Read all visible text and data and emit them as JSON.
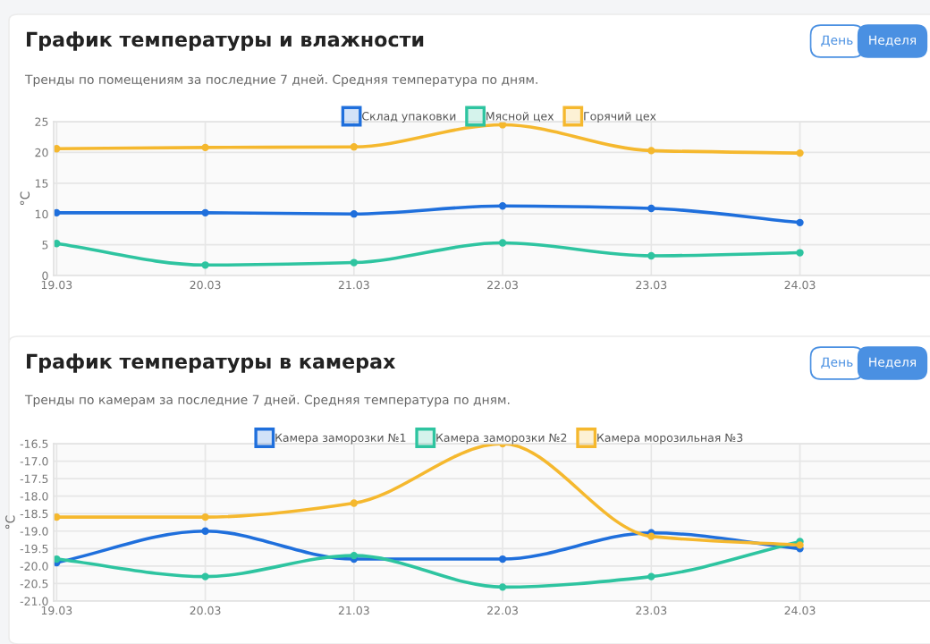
{
  "chart_data": [
    {
      "type": "line",
      "title": "График температуры и влажности",
      "subtitle": "Тренды по помещениям за последние 7 дней. Средняя температура по дням.",
      "ylabel": "°C",
      "annotations": [
        "День",
        "Неделя"
      ],
      "categories": [
        "19.03",
        "20.03",
        "21.03",
        "22.03",
        "23.03",
        "24.03"
      ],
      "series": [
        {
          "name": "Склад упаковки",
          "color": "#1f6fdc",
          "values": [
            10.2,
            10.2,
            10.0,
            11.3,
            10.9,
            8.6
          ]
        },
        {
          "name": "Мясной цех",
          "color": "#2ec4a0",
          "values": [
            5.2,
            1.7,
            2.1,
            5.3,
            3.2,
            3.7
          ]
        },
        {
          "name": "Горячий цех",
          "color": "#f5b82e",
          "values": [
            20.6,
            20.8,
            20.9,
            24.5,
            20.3,
            19.9
          ]
        }
      ],
      "ylim": [
        0,
        25
      ],
      "yticks": [
        0,
        5,
        10,
        15,
        20,
        25
      ],
      "grid": true,
      "legend": "top",
      "marker": "circle",
      "line_style": "solid"
    },
    {
      "type": "line",
      "title": "График температуры в камерах",
      "subtitle": "Тренды по камерам за последние 7 дней. Средняя температура по дням.",
      "ylabel": "°C",
      "annotations": [
        "День",
        "Неделя"
      ],
      "categories": [
        "19.03",
        "20.03",
        "21.03",
        "22.03",
        "23.03",
        "24.03"
      ],
      "series": [
        {
          "name": "Камера заморозки №1",
          "color": "#1f6fdc",
          "values": [
            -19.9,
            -19.0,
            -19.8,
            -19.8,
            -19.05,
            -19.5
          ]
        },
        {
          "name": "Камера заморозки №2",
          "color": "#2ec4a0",
          "values": [
            -19.8,
            -20.3,
            -19.7,
            -20.6,
            -20.3,
            -19.3
          ]
        },
        {
          "name": "Камера морозильная №3",
          "color": "#f5b82e",
          "values": [
            -18.6,
            -18.6,
            -18.2,
            -16.5,
            -19.15,
            -19.4
          ]
        }
      ],
      "ylim": [
        -21.0,
        -16.5
      ],
      "yticks": [
        {
          "value": -21.0,
          "label": "-21.0"
        },
        {
          "value": -20.5,
          "label": "-20.5"
        },
        {
          "value": -20.0,
          "label": "-20.0"
        },
        {
          "value": -19.5,
          "label": "-19.5"
        },
        {
          "value": -19.0,
          "label": "-19.0"
        },
        {
          "value": -18.5,
          "label": "-18.5"
        },
        {
          "value": -18.0,
          "label": "-18.0"
        },
        {
          "value": -17.5,
          "label": "-17.5"
        },
        {
          "value": -17.0,
          "label": "-17.0"
        },
        {
          "value": -16.5,
          "label": "-16.5"
        }
      ],
      "grid": true,
      "legend": "top",
      "marker": "circle",
      "line_style": "solid"
    }
  ]
}
